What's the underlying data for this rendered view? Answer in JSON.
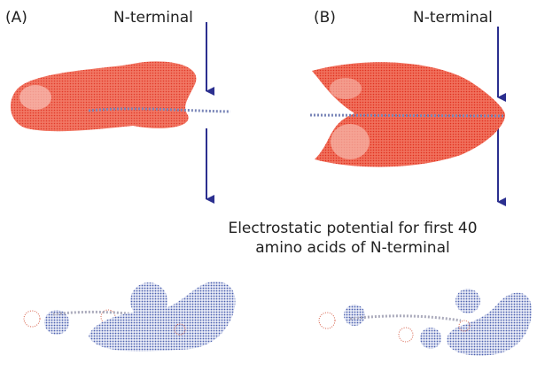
{
  "panels": [
    {
      "label": "(A)",
      "arrow_label": "N-terminal"
    },
    {
      "label": "(B)",
      "arrow_label": "N-terminal"
    }
  ],
  "caption": [
    "Electrostatic potential for first 40",
    "amino acids of N-terminal"
  ]
}
